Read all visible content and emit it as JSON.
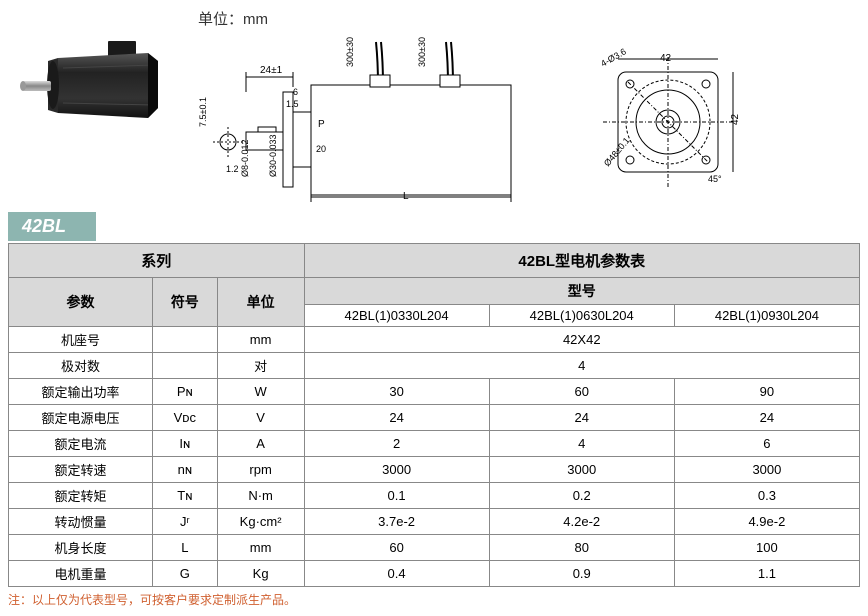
{
  "unit_label": "单位：mm",
  "series_name": "42BL",
  "dimensions": {
    "shaft_offset": "24±1",
    "key_width": "6",
    "key_pos": "1.5",
    "shaft_height": "7.5±0.1",
    "shaft_dia": "Ø8-0.012",
    "flange_dia": "Ø30-0.033",
    "clearance": "1.2",
    "p_label": "P",
    "step": "20",
    "body_len": "L",
    "cable1": "300±30",
    "cable2": "300±30",
    "hole_pattern": "4-Ø3.6",
    "flange_w": "42",
    "flange_h": "42",
    "bolt_circle": "Ø48±0.1",
    "chamfer": "45°"
  },
  "table_headers": {
    "series_col": "系列",
    "spec_title": "42BL型电机参数表",
    "param": "参数",
    "symbol": "符号",
    "unit": "单位",
    "model": "型号"
  },
  "models": [
    "42BL(1)0330L204",
    "42BL(1)0630L204",
    "42BL(1)0930L204"
  ],
  "rows": [
    {
      "param": "机座号",
      "symbol": "",
      "unit": "mm",
      "values": [
        "42X42"
      ],
      "span": 3
    },
    {
      "param": "极对数",
      "symbol": "",
      "unit": "对",
      "values": [
        "4"
      ],
      "span": 3
    },
    {
      "param": "额定输出功率",
      "symbol": "Pɴ",
      "unit": "W",
      "values": [
        "30",
        "60",
        "90"
      ],
      "span": 1
    },
    {
      "param": "额定电源电压",
      "symbol": "Vᴅᴄ",
      "unit": "V",
      "values": [
        "24",
        "24",
        "24"
      ],
      "span": 1
    },
    {
      "param": "额定电流",
      "symbol": "Iɴ",
      "unit": "A",
      "values": [
        "2",
        "4",
        "6"
      ],
      "span": 1
    },
    {
      "param": "额定转速",
      "symbol": "nɴ",
      "unit": "rpm",
      "values": [
        "3000",
        "3000",
        "3000"
      ],
      "span": 1
    },
    {
      "param": "额定转矩",
      "symbol": "Tɴ",
      "unit": "N·m",
      "values": [
        "0.1",
        "0.2",
        "0.3"
      ],
      "span": 1
    },
    {
      "param": "转动惯量",
      "symbol": "Jʳ",
      "unit": "Kg·cm²",
      "values": [
        "3.7e-2",
        "4.2e-2",
        "4.9e-2"
      ],
      "span": 1
    },
    {
      "param": "机身长度",
      "symbol": "L",
      "unit": "mm",
      "values": [
        "60",
        "80",
        "100"
      ],
      "span": 1
    },
    {
      "param": "电机重量",
      "symbol": "G",
      "unit": "Kg",
      "values": [
        "0.4",
        "0.9",
        "1.1"
      ],
      "span": 1
    }
  ],
  "note": "注：以上仅为代表型号，可按客户要求定制派生产品。",
  "colors": {
    "badge_bg": "#8db5b0",
    "header_bg": "#d9d9d9",
    "border": "#888888",
    "note_color": "#d06030"
  }
}
